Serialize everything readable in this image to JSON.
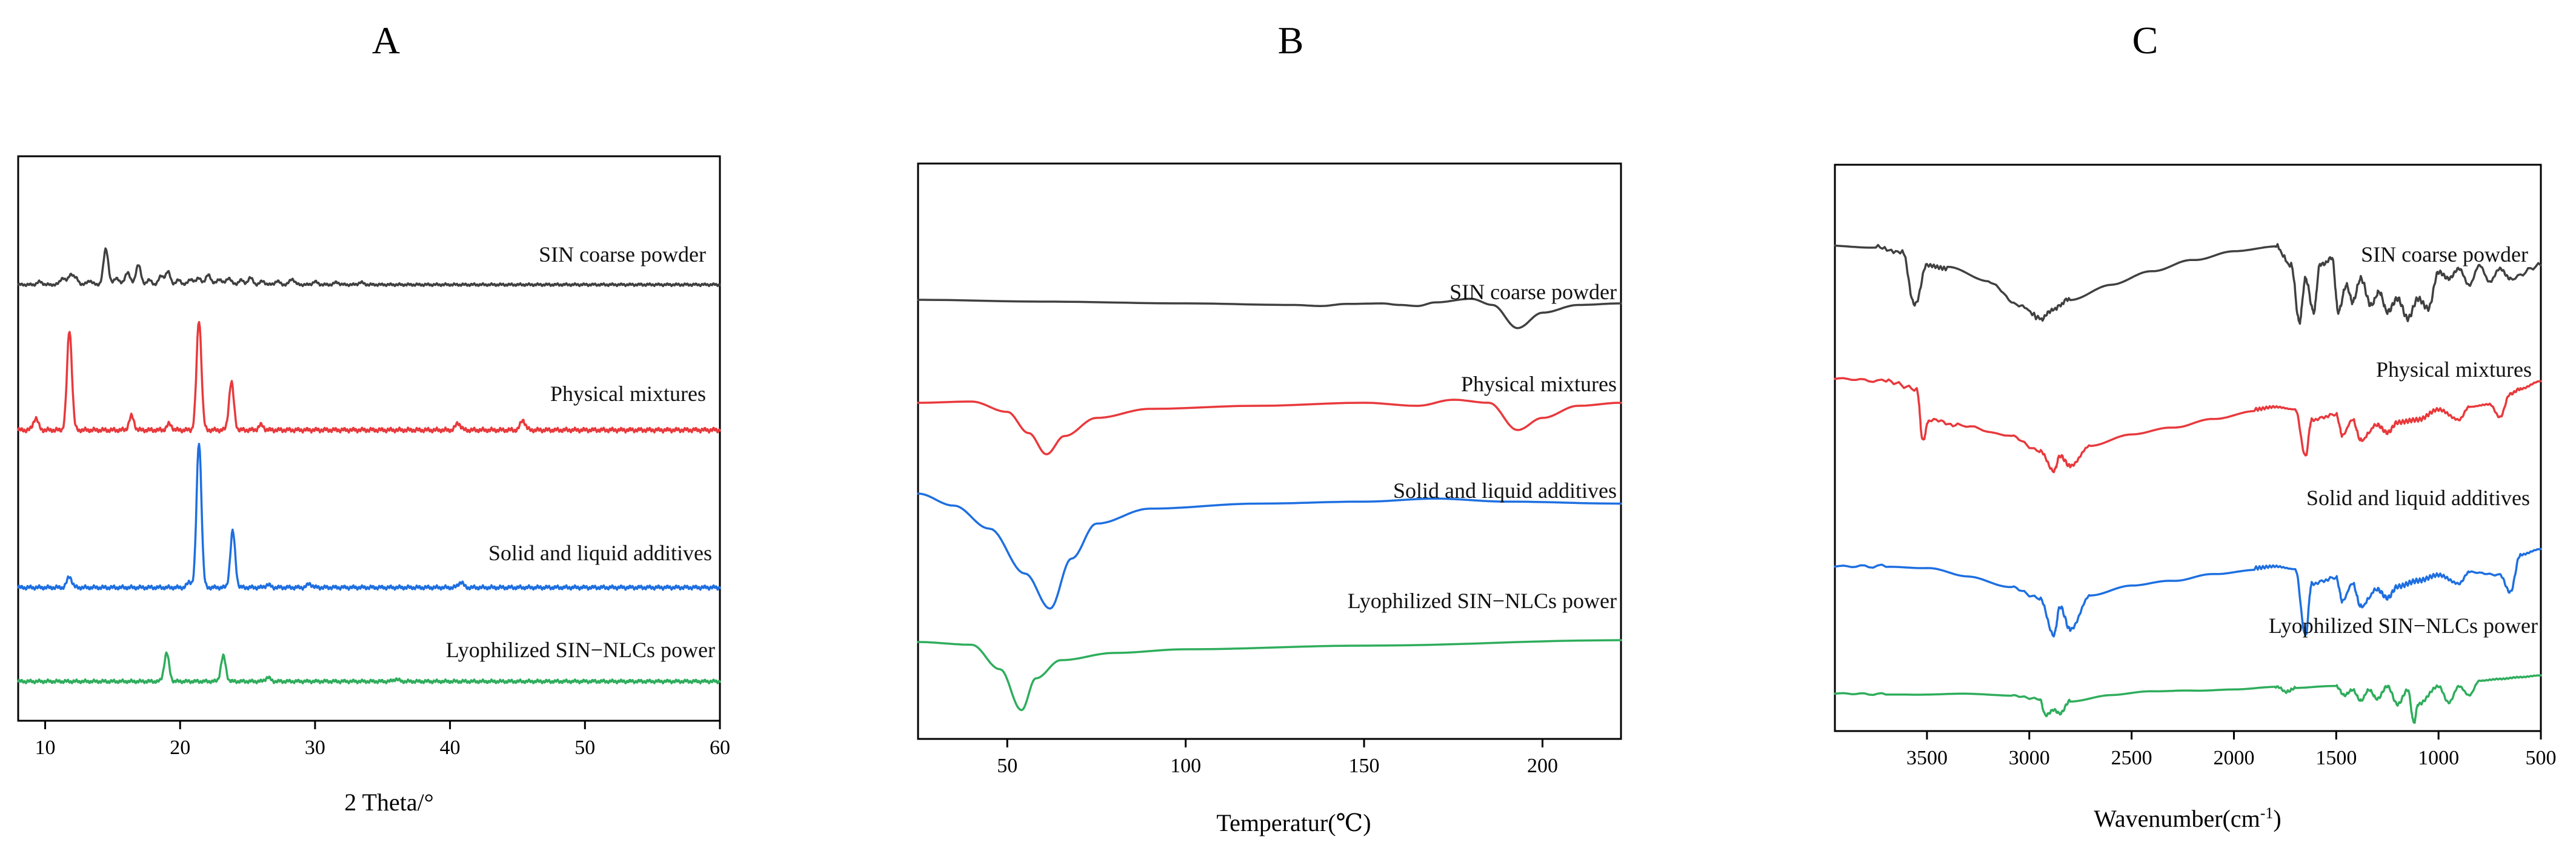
{
  "chart_data": [
    {
      "panel": "A",
      "type": "line",
      "title": "A",
      "xlabel": "2 Theta/°",
      "ylabel": "",
      "xlim": [
        8,
        60
      ],
      "xticks": [
        10,
        20,
        30,
        40,
        50,
        60
      ],
      "grid": false,
      "series": [
        {
          "name": "SIN coarse powder",
          "color": "#404040",
          "peaks": [
            [
              9.6,
              0.05
            ],
            [
              11.3,
              0.12
            ],
            [
              11.9,
              0.18
            ],
            [
              12.3,
              0.1
            ],
            [
              13.3,
              0.07
            ],
            [
              14.5,
              0.62
            ],
            [
              15.3,
              0.12
            ],
            [
              16.1,
              0.22
            ],
            [
              16.9,
              0.35
            ],
            [
              17.7,
              0.08
            ],
            [
              18.6,
              0.15
            ],
            [
              19.1,
              0.22
            ],
            [
              19.9,
              0.08
            ],
            [
              20.8,
              0.1
            ],
            [
              21.4,
              0.12
            ],
            [
              22.1,
              0.18
            ],
            [
              22.9,
              0.1
            ],
            [
              23.6,
              0.12
            ],
            [
              24.5,
              0.08
            ],
            [
              25.2,
              0.12
            ],
            [
              26.1,
              0.06
            ],
            [
              27.2,
              0.06
            ],
            [
              28.3,
              0.1
            ],
            [
              30.0,
              0.05
            ],
            [
              31.6,
              0.04
            ],
            [
              33.4,
              0.04
            ]
          ]
        },
        {
          "name": "Physical mixtures",
          "color": "#e8393c",
          "peaks": [
            [
              9.3,
              0.12
            ],
            [
              11.8,
              1.0
            ],
            [
              16.4,
              0.14
            ],
            [
              19.2,
              0.06
            ],
            [
              21.4,
              1.1
            ],
            [
              23.8,
              0.48
            ],
            [
              26.0,
              0.05
            ],
            [
              40.6,
              0.07
            ],
            [
              45.4,
              0.1
            ]
          ]
        },
        {
          "name": "Solid and liquid additives",
          "color": "#1e6fe0",
          "peaks": [
            [
              11.8,
              0.12
            ],
            [
              20.7,
              0.06
            ],
            [
              21.4,
              1.6
            ],
            [
              23.9,
              0.62
            ],
            [
              26.5,
              0.03
            ],
            [
              29.6,
              0.04
            ],
            [
              40.8,
              0.06
            ]
          ]
        },
        {
          "name": "Lyophilized SIN−NLCs power",
          "color": "#2fad5c",
          "peaks": [
            [
              19.0,
              0.36
            ],
            [
              23.2,
              0.32
            ],
            [
              26.5,
              0.05
            ],
            [
              36.0,
              0.03
            ]
          ]
        }
      ]
    },
    {
      "panel": "B",
      "type": "line",
      "title": "B",
      "xlabel": "Temperatur(℃)",
      "ylabel": "",
      "xlim": [
        25,
        222
      ],
      "xticks": [
        50,
        100,
        150,
        200
      ],
      "grid": false,
      "series": [
        {
          "name": "SIN coarse powder",
          "color": "#404040",
          "description_points": [
            [
              25,
              0.0
            ],
            [
              60,
              -0.035
            ],
            [
              100,
              -0.07
            ],
            [
              130,
              -0.1
            ],
            [
              138,
              -0.12
            ],
            [
              145,
              -0.08
            ],
            [
              155,
              -0.07
            ],
            [
              160,
              -0.1
            ],
            [
              165,
              -0.12
            ],
            [
              170,
              -0.05
            ],
            [
              180,
              0.02
            ],
            [
              186,
              -0.1
            ],
            [
              193,
              -0.55
            ],
            [
              200,
              -0.25
            ],
            [
              210,
              -0.1
            ],
            [
              222,
              -0.07
            ]
          ]
        },
        {
          "name": "Physical mixtures",
          "color": "#e8393c",
          "description_points": [
            [
              25,
              0.0
            ],
            [
              40,
              0.02
            ],
            [
              50,
              -0.15
            ],
            [
              56,
              -0.5
            ],
            [
              61,
              -0.85
            ],
            [
              66,
              -0.55
            ],
            [
              75,
              -0.25
            ],
            [
              90,
              -0.1
            ],
            [
              120,
              -0.05
            ],
            [
              150,
              0.0
            ],
            [
              165,
              -0.05
            ],
            [
              175,
              0.05
            ],
            [
              185,
              0.0
            ],
            [
              193,
              -0.45
            ],
            [
              200,
              -0.25
            ],
            [
              210,
              -0.05
            ],
            [
              222,
              0.0
            ]
          ]
        },
        {
          "name": "Solid and liquid additives",
          "color": "#1e6fe0",
          "description_points": [
            [
              25,
              0.0
            ],
            [
              35,
              -0.12
            ],
            [
              45,
              -0.35
            ],
            [
              55,
              -0.8
            ],
            [
              62,
              -1.15
            ],
            [
              68,
              -0.65
            ],
            [
              75,
              -0.3
            ],
            [
              90,
              -0.15
            ],
            [
              120,
              -0.1
            ],
            [
              150,
              -0.08
            ],
            [
              170,
              -0.05
            ],
            [
              190,
              -0.08
            ],
            [
              222,
              -0.1
            ]
          ]
        },
        {
          "name": "Lyophilized SIN−NLCs power",
          "color": "#2fad5c",
          "description_points": [
            [
              25,
              0.0
            ],
            [
              40,
              -0.03
            ],
            [
              48,
              -0.3
            ],
            [
              54,
              -0.75
            ],
            [
              58,
              -0.4
            ],
            [
              65,
              -0.2
            ],
            [
              80,
              -0.12
            ],
            [
              100,
              -0.08
            ],
            [
              150,
              -0.04
            ],
            [
              222,
              0.02
            ]
          ]
        }
      ]
    },
    {
      "panel": "C",
      "type": "line",
      "title": "C",
      "xlabel": "Wavenumber(cm",
      "xlabel_sup": "-1",
      "xlabel_end": ")",
      "ylabel": "",
      "xlim": [
        3950,
        500
      ],
      "xticks": [
        3500,
        3000,
        2500,
        2000,
        1500,
        1000,
        500
      ],
      "grid": false,
      "series": [
        {
          "name": "SIN coarse powder",
          "color": "#404040",
          "description_points": [
            [
              3950,
              0.0
            ],
            [
              3750,
              -0.02
            ],
            [
              3620,
              -0.1
            ],
            [
              3560,
              -0.9
            ],
            [
              3500,
              -0.3
            ],
            [
              3400,
              -0.35
            ],
            [
              3200,
              -0.55
            ],
            [
              3050,
              -0.9
            ],
            [
              2940,
              -1.1
            ],
            [
              2880,
              -0.95
            ],
            [
              2800,
              -0.8
            ],
            [
              2600,
              -0.6
            ],
            [
              2400,
              -0.4
            ],
            [
              2200,
              -0.2
            ],
            [
              2000,
              -0.05
            ],
            [
              1800,
              0.0
            ],
            [
              1720,
              -0.3
            ],
            [
              1680,
              -1.15
            ],
            [
              1650,
              -0.5
            ],
            [
              1610,
              -1.0
            ],
            [
              1580,
              -0.3
            ],
            [
              1520,
              -0.2
            ],
            [
              1490,
              -1.0
            ],
            [
              1450,
              -0.6
            ],
            [
              1420,
              -0.85
            ],
            [
              1380,
              -0.5
            ],
            [
              1330,
              -0.9
            ],
            [
              1290,
              -0.7
            ],
            [
              1250,
              -1.0
            ],
            [
              1200,
              -0.8
            ],
            [
              1150,
              -1.1
            ],
            [
              1100,
              -0.8
            ],
            [
              1050,
              -0.95
            ],
            [
              1000,
              -0.4
            ],
            [
              950,
              -0.5
            ],
            [
              900,
              -0.35
            ],
            [
              850,
              -0.6
            ],
            [
              800,
              -0.3
            ],
            [
              750,
              -0.55
            ],
            [
              700,
              -0.35
            ],
            [
              650,
              -0.5
            ],
            [
              500,
              -0.3
            ]
          ]
        },
        {
          "name": "Physical mixtures",
          "color": "#e8393c",
          "description_points": [
            [
              3950,
              0.0
            ],
            [
              3700,
              -0.05
            ],
            [
              3550,
              -0.2
            ],
            [
              3520,
              -1.2
            ],
            [
              3490,
              -0.8
            ],
            [
              3350,
              -0.9
            ],
            [
              3100,
              -1.1
            ],
            [
              2950,
              -1.4
            ],
            [
              2880,
              -1.8
            ],
            [
              2850,
              -1.5
            ],
            [
              2800,
              -1.7
            ],
            [
              2700,
              -1.3
            ],
            [
              2500,
              -1.1
            ],
            [
              2300,
              -0.95
            ],
            [
              2100,
              -0.75
            ],
            [
              1900,
              -0.6
            ],
            [
              1800,
              -0.55
            ],
            [
              1700,
              -0.6
            ],
            [
              1650,
              -1.5
            ],
            [
              1620,
              -0.8
            ],
            [
              1500,
              -0.7
            ],
            [
              1470,
              -1.1
            ],
            [
              1420,
              -0.8
            ],
            [
              1380,
              -1.2
            ],
            [
              1300,
              -0.9
            ],
            [
              1250,
              -1.05
            ],
            [
              1200,
              -0.85
            ],
            [
              1100,
              -0.8
            ],
            [
              1000,
              -0.6
            ],
            [
              900,
              -0.8
            ],
            [
              850,
              -0.55
            ],
            [
              750,
              -0.5
            ],
            [
              700,
              -0.75
            ],
            [
              650,
              -0.3
            ],
            [
              600,
              -0.2
            ],
            [
              500,
              -0.05
            ]
          ]
        },
        {
          "name": "Solid and liquid additives",
          "color": "#1e6fe0",
          "description_points": [
            [
              3950,
              0.0
            ],
            [
              3700,
              0.0
            ],
            [
              3500,
              -0.05
            ],
            [
              3300,
              -0.2
            ],
            [
              3100,
              -0.35
            ],
            [
              2950,
              -0.55
            ],
            [
              2880,
              -1.2
            ],
            [
              2850,
              -0.7
            ],
            [
              2800,
              -1.1
            ],
            [
              2700,
              -0.5
            ],
            [
              2500,
              -0.35
            ],
            [
              2300,
              -0.25
            ],
            [
              2100,
              -0.1
            ],
            [
              1900,
              -0.03
            ],
            [
              1800,
              0.0
            ],
            [
              1700,
              -0.05
            ],
            [
              1650,
              -1.2
            ],
            [
              1620,
              -0.3
            ],
            [
              1500,
              -0.2
            ],
            [
              1470,
              -0.6
            ],
            [
              1420,
              -0.3
            ],
            [
              1380,
              -0.7
            ],
            [
              1300,
              -0.4
            ],
            [
              1250,
              -0.55
            ],
            [
              1200,
              -0.35
            ],
            [
              1100,
              -0.25
            ],
            [
              1000,
              -0.15
            ],
            [
              900,
              -0.3
            ],
            [
              850,
              -0.1
            ],
            [
              700,
              -0.15
            ],
            [
              650,
              -0.45
            ],
            [
              600,
              0.2
            ],
            [
              500,
              0.3
            ]
          ]
        },
        {
          "name": "Lyophilized SIN−NLCs power",
          "color": "#2fad5c",
          "description_points": [
            [
              3950,
              0.0
            ],
            [
              3700,
              -0.02
            ],
            [
              3500,
              -0.05
            ],
            [
              3300,
              -0.03
            ],
            [
              3100,
              -0.05
            ],
            [
              2950,
              -0.15
            ],
            [
              2920,
              -0.6
            ],
            [
              2880,
              -0.45
            ],
            [
              2850,
              -0.55
            ],
            [
              2800,
              -0.2
            ],
            [
              2600,
              -0.05
            ],
            [
              2400,
              0.05
            ],
            [
              2200,
              0.1
            ],
            [
              2000,
              0.15
            ],
            [
              1800,
              0.2
            ],
            [
              1740,
              0.05
            ],
            [
              1700,
              0.15
            ],
            [
              1500,
              0.2
            ],
            [
              1460,
              -0.05
            ],
            [
              1420,
              0.1
            ],
            [
              1380,
              -0.2
            ],
            [
              1340,
              0.1
            ],
            [
              1300,
              -0.15
            ],
            [
              1250,
              0.2
            ],
            [
              1200,
              -0.3
            ],
            [
              1150,
              0.1
            ],
            [
              1120,
              -0.8
            ],
            [
              1100,
              -0.3
            ],
            [
              1000,
              0.2
            ],
            [
              950,
              -0.25
            ],
            [
              900,
              0.2
            ],
            [
              850,
              -0.05
            ],
            [
              800,
              0.35
            ],
            [
              700,
              0.4
            ],
            [
              600,
              0.45
            ],
            [
              500,
              0.5
            ]
          ]
        }
      ]
    }
  ]
}
